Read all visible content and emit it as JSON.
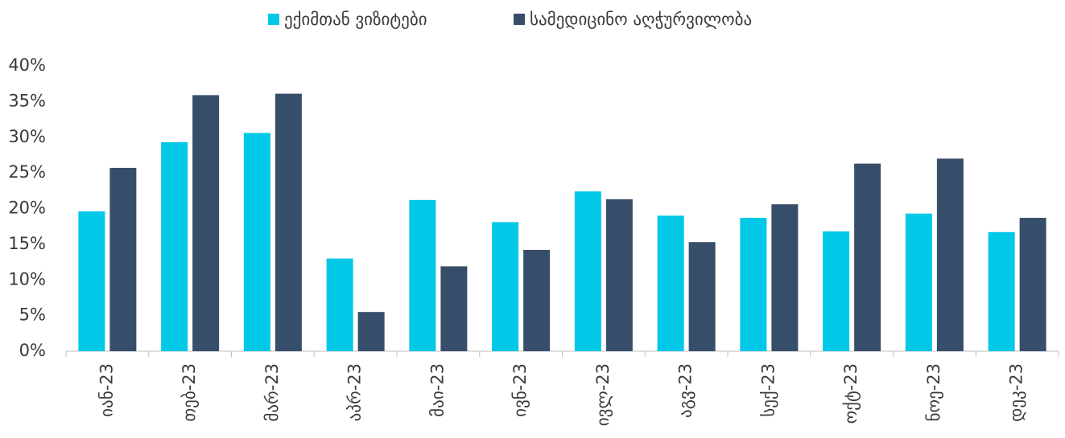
{
  "chart_data": {
    "type": "bar",
    "categories": [
      "იან-23",
      "თებ-23",
      "მარ-23",
      "აპრ-23",
      "მაი-23",
      "ივნ-23",
      "ივლ-23",
      "აგვ-23",
      "სექ-23",
      "ოქტ-23",
      "ნოე-23",
      "დეკ-23"
    ],
    "series": [
      {
        "name": "ექიმთან ვიზიტები",
        "color": "#00c8e6",
        "values": [
          19.6,
          29.3,
          30.6,
          13.0,
          21.2,
          18.1,
          22.4,
          19.0,
          18.7,
          16.8,
          19.3,
          16.7
        ]
      },
      {
        "name": "სამედიცინო აღჭურვილობა",
        "color": "#374e6b",
        "values": [
          25.7,
          35.9,
          36.1,
          5.5,
          11.9,
          14.2,
          21.3,
          15.3,
          20.6,
          26.3,
          27.0,
          18.7
        ]
      }
    ],
    "ylim": [
      0,
      40
    ],
    "yticks": [
      {
        "value": 0,
        "label": "0%"
      },
      {
        "value": 5,
        "label": "5%"
      },
      {
        "value": 10,
        "label": "10%"
      },
      {
        "value": 15,
        "label": "15%"
      },
      {
        "value": 20,
        "label": "20%"
      },
      {
        "value": 25,
        "label": "25%"
      },
      {
        "value": 30,
        "label": "30%"
      },
      {
        "value": 35,
        "label": "35%"
      },
      {
        "value": 40,
        "label": "40%"
      }
    ],
    "grid": false,
    "legend": "top"
  }
}
